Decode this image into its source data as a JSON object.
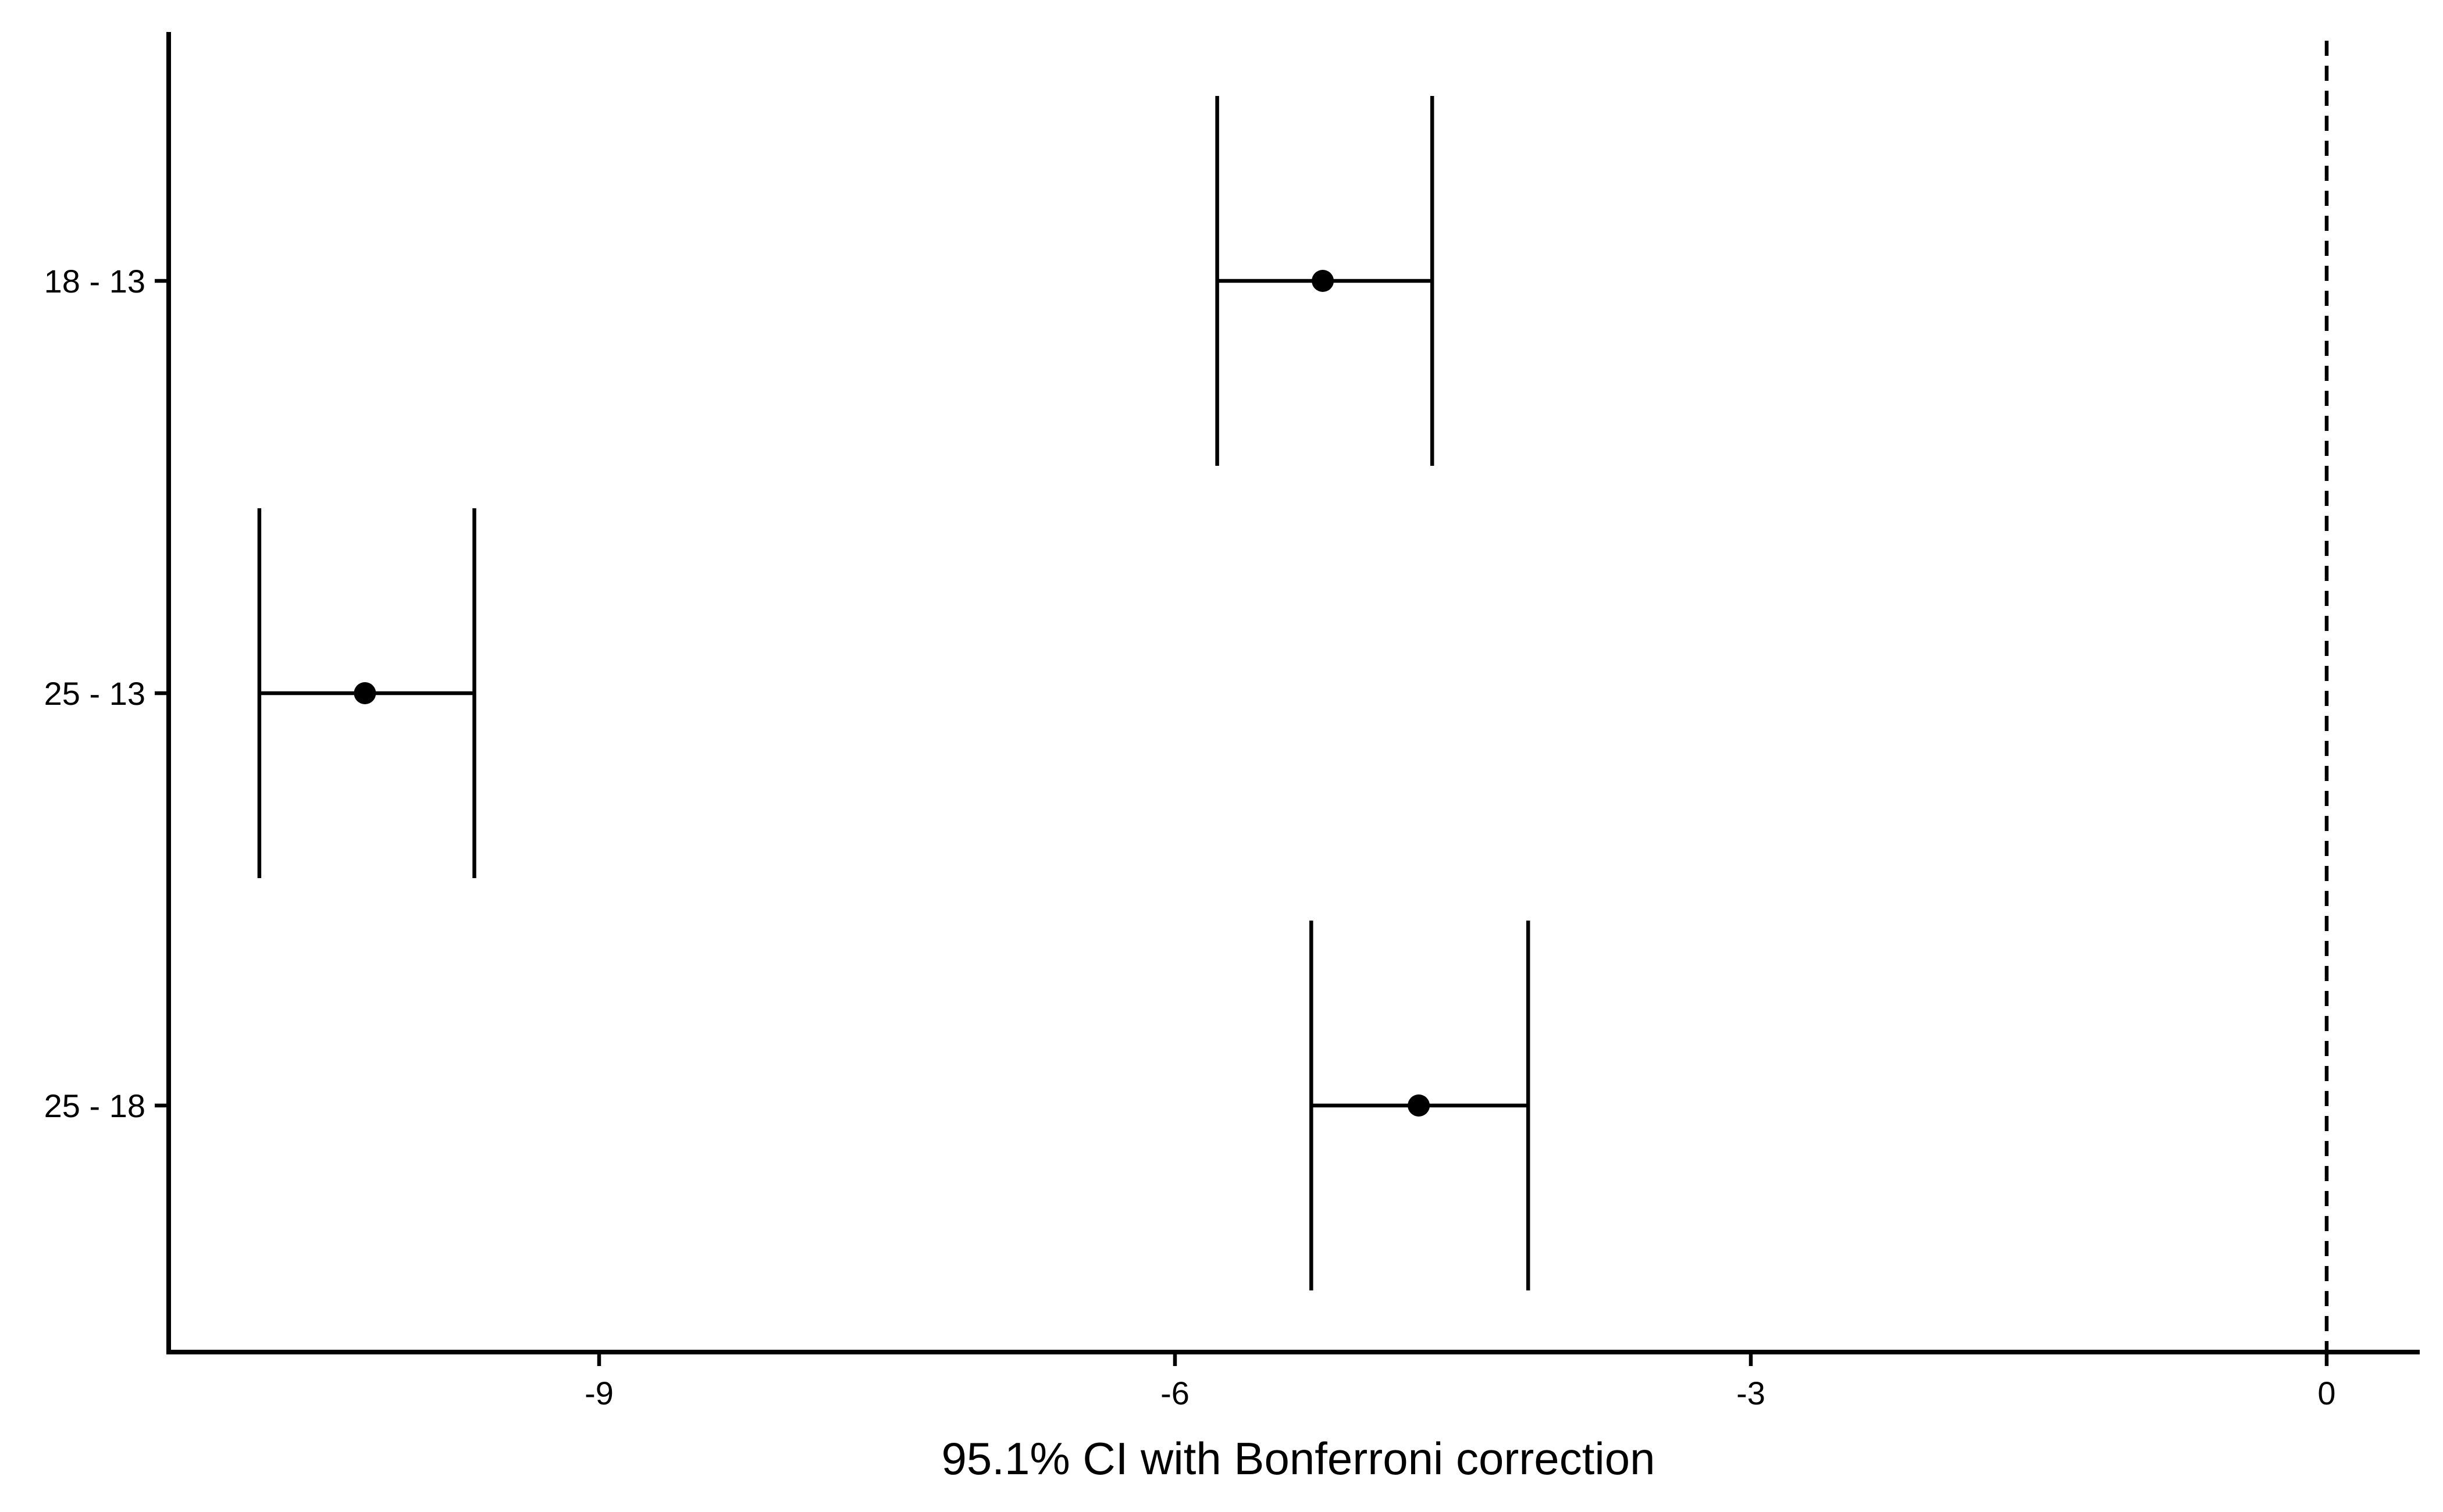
{
  "chart_data": {
    "type": "errorbar",
    "title": "",
    "xlabel": "95.1% CI with Bonferroni correction",
    "ylabel": "",
    "xlim": [
      -11.2,
      0.5
    ],
    "x_ticks": [
      -9,
      -6,
      -3,
      0
    ],
    "x_tick_labels": [
      "-9",
      "-6",
      "-3",
      "0"
    ],
    "reference_line": {
      "x": 0,
      "style": "dashed"
    },
    "grid": false,
    "legend": "none",
    "categories": [
      "18 - 13",
      "25 - 13",
      "25 - 18"
    ],
    "estimates": [
      -5.23,
      -10.22,
      -4.73
    ],
    "lower": [
      -5.78,
      -10.77,
      -5.29
    ],
    "upper": [
      -4.66,
      -9.65,
      -4.16
    ],
    "colors": {
      "marks": "#000000",
      "background": "#ffffff"
    }
  }
}
